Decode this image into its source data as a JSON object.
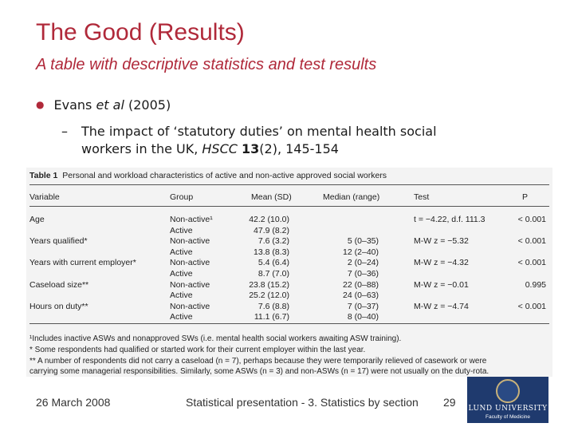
{
  "slide": {
    "title": "The Good (Results)",
    "subtitle": "A table with descriptive statistics and test results",
    "bullet": {
      "pre": "Evans ",
      "etal": "et al",
      "post": " (2005)"
    },
    "sub": {
      "line1": "The impact of ‘statutory duties’ on mental health social",
      "line2pre": "workers in the UK, ",
      "journal": "HSCC",
      "volume": "13",
      "line2post": "(2), 145-154"
    }
  },
  "table": {
    "caption_label": "Table 1",
    "caption_text": "Personal and workload characteristics of active and non-active approved social workers",
    "headers": [
      "Variable",
      "Group",
      "Mean (SD)",
      "Median (range)",
      "Test",
      "P"
    ],
    "rows": [
      {
        "variable": "Age",
        "group": "Non-active¹",
        "mean": "42.2 (10.0)",
        "median": "",
        "test": "t = −4.22, d.f. 111.3",
        "p": "< 0.001"
      },
      {
        "variable": "",
        "group": "Active",
        "mean": "47.9 (8.2)",
        "median": "",
        "test": "",
        "p": ""
      },
      {
        "variable": "Years qualified*",
        "group": "Non-active",
        "mean": "7.6 (3.2)",
        "median": "5 (0–35)",
        "test": "M-W z = −5.32",
        "p": "< 0.001"
      },
      {
        "variable": "",
        "group": "Active",
        "mean": "13.8 (8.3)",
        "median": "12 (2–40)",
        "test": "",
        "p": ""
      },
      {
        "variable": "Years with current employer*",
        "group": "Non-active",
        "mean": "5.4 (6.4)",
        "median": "2 (0–24)",
        "test": "M-W z = −4.32",
        "p": "< 0.001"
      },
      {
        "variable": "",
        "group": "Active",
        "mean": "8.7 (7.0)",
        "median": "7 (0–36)",
        "test": "",
        "p": ""
      },
      {
        "variable": "Caseload size**",
        "group": "Non-active",
        "mean": "23.8 (15.2)",
        "median": "22 (0–88)",
        "test": "M-W z = −0.01",
        "p": "0.995"
      },
      {
        "variable": "",
        "group": "Active",
        "mean": "25.2 (12.0)",
        "median": "24 (0–63)",
        "test": "",
        "p": ""
      },
      {
        "variable": "Hours on duty**",
        "group": "Non-active",
        "mean": "7.6 (8.8)",
        "median": "7 (0–37)",
        "test": "M-W z = −4.74",
        "p": "< 0.001"
      },
      {
        "variable": "",
        "group": "Active",
        "mean": "11.1 (6.7)",
        "median": "8 (0–40)",
        "test": "",
        "p": ""
      }
    ],
    "footnotes": [
      "¹Includes inactive ASWs and nonapproved SWs (i.e. mental health social workers awaiting ASW training).",
      "* Some respondents had qualified or started work for their current employer within the last year.",
      "** A number of respondents did not carry a caseload (n = 7), perhaps because they were temporarily relieved of casework or were",
      "carrying some managerial responsibilities. Similarly, some ASWs (n = 3) and non-ASWs (n = 17) were not usually on the duty-rota."
    ]
  },
  "footer": {
    "date": "26 March 2008",
    "center": "Statistical presentation - 3. Statistics by section",
    "page": "29"
  },
  "logo": {
    "name": "LUND UNIVERSITY",
    "faculty": "Faculty of Medicine"
  }
}
